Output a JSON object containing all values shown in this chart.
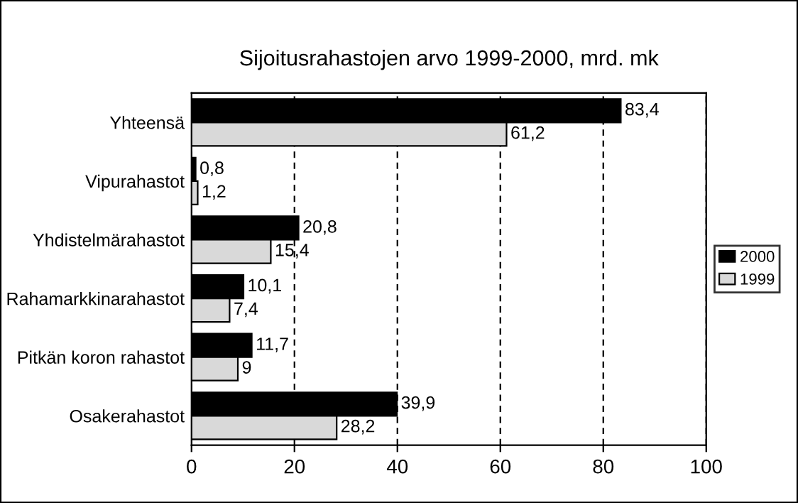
{
  "chart_data": {
    "type": "bar",
    "orientation": "horizontal",
    "title": "Sijoitusrahastojen arvo 1999-2000, mrd. mk",
    "categories": [
      "Yhteensä",
      "Vipurahastot",
      "Yhdistelmärahastot",
      "Rahamarkkinarahastot",
      "Pitkän koron rahastot",
      "Osakerahastot"
    ],
    "series": [
      {
        "name": "2000",
        "color": "#000000",
        "values": [
          83.4,
          0.8,
          20.8,
          10.1,
          11.7,
          39.9
        ],
        "value_labels": [
          "83,4",
          "0,8",
          "20,8",
          "10,1",
          "11,7",
          "39,9"
        ]
      },
      {
        "name": "1999",
        "color": "#d9d9d9",
        "values": [
          61.2,
          1.2,
          15.4,
          7.4,
          9,
          28.2
        ],
        "value_labels": [
          "61,2",
          "1,2",
          "15,4",
          "7,4",
          "9",
          "28,2"
        ]
      }
    ],
    "xlim": [
      0,
      100
    ],
    "xticks": [
      0,
      20,
      40,
      60,
      80,
      100
    ],
    "grid": "x",
    "legend": "right"
  }
}
